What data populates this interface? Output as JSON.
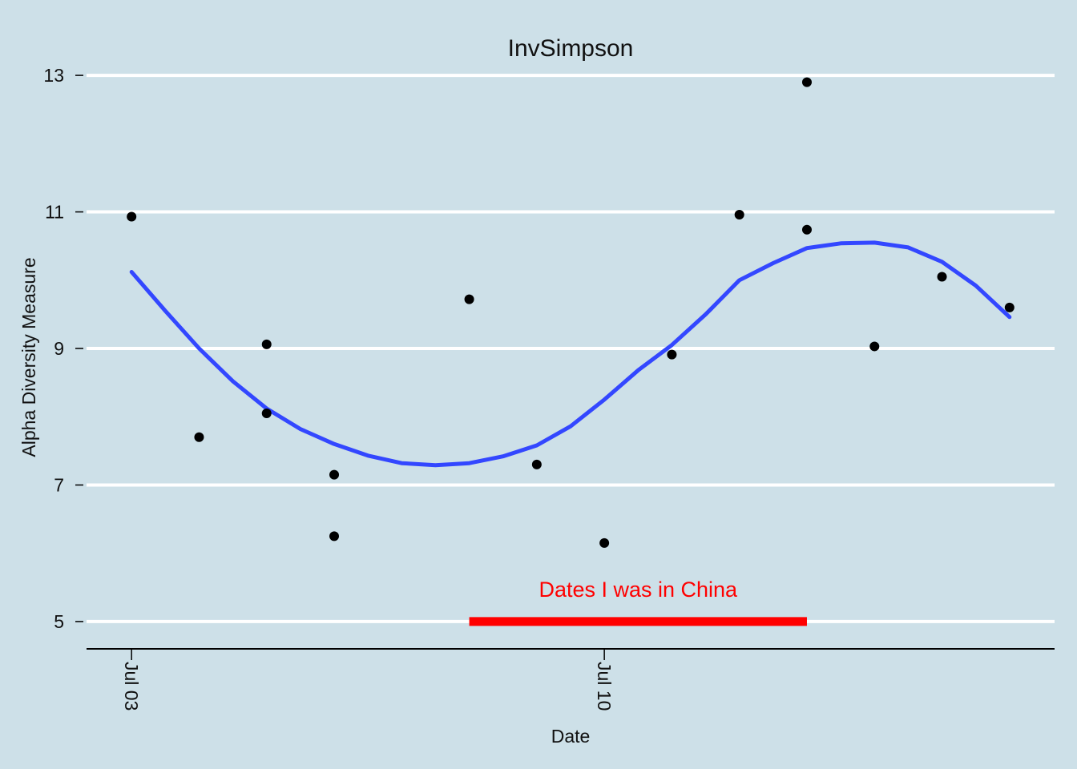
{
  "chart_data": {
    "type": "scatter",
    "title": "InvSimpson",
    "xlabel": "Date",
    "ylabel": "Alpha Diversity Measure",
    "x_axis": {
      "type": "date",
      "range": [
        "2023-07-02T08:00",
        "2023-07-16T16:00"
      ],
      "ticks": [
        {
          "value": "2023-07-03",
          "label": "Jul 03"
        },
        {
          "value": "2023-07-10",
          "label": "Jul 10"
        }
      ]
    },
    "y_axis": {
      "range": [
        4.6,
        13.4
      ],
      "ticks": [
        5,
        7,
        9,
        11,
        13
      ]
    },
    "grid": {
      "horizontal": true,
      "vertical": false
    },
    "legend": "none",
    "points": [
      {
        "x": "2023-07-03",
        "y": 10.93
      },
      {
        "x": "2023-07-04",
        "y": 7.7
      },
      {
        "x": "2023-07-05",
        "y": 9.06
      },
      {
        "x": "2023-07-05",
        "y": 8.05
      },
      {
        "x": "2023-07-06",
        "y": 7.15
      },
      {
        "x": "2023-07-06",
        "y": 6.25
      },
      {
        "x": "2023-07-08",
        "y": 9.72
      },
      {
        "x": "2023-07-09",
        "y": 7.3
      },
      {
        "x": "2023-07-10",
        "y": 6.15
      },
      {
        "x": "2023-07-11",
        "y": 8.91
      },
      {
        "x": "2023-07-12",
        "y": 10.96
      },
      {
        "x": "2023-07-13",
        "y": 12.9
      },
      {
        "x": "2023-07-13",
        "y": 10.74
      },
      {
        "x": "2023-07-14",
        "y": 9.03
      },
      {
        "x": "2023-07-15",
        "y": 10.05
      },
      {
        "x": "2023-07-16",
        "y": 9.6
      }
    ],
    "smooth_line": {
      "color": "#3347ff",
      "points": [
        {
          "x": "2023-07-03T00:00",
          "y": 10.12
        },
        {
          "x": "2023-07-03T12:00",
          "y": 9.55
        },
        {
          "x": "2023-07-04T00:00",
          "y": 9.0
        },
        {
          "x": "2023-07-04T12:00",
          "y": 8.52
        },
        {
          "x": "2023-07-05T00:00",
          "y": 8.12
        },
        {
          "x": "2023-07-05T12:00",
          "y": 7.82
        },
        {
          "x": "2023-07-06T00:00",
          "y": 7.6
        },
        {
          "x": "2023-07-06T12:00",
          "y": 7.43
        },
        {
          "x": "2023-07-07T00:00",
          "y": 7.32
        },
        {
          "x": "2023-07-07T12:00",
          "y": 7.29
        },
        {
          "x": "2023-07-08T00:00",
          "y": 7.32
        },
        {
          "x": "2023-07-08T12:00",
          "y": 7.42
        },
        {
          "x": "2023-07-09T00:00",
          "y": 7.58
        },
        {
          "x": "2023-07-09T12:00",
          "y": 7.86
        },
        {
          "x": "2023-07-10T00:00",
          "y": 8.25
        },
        {
          "x": "2023-07-10T12:00",
          "y": 8.68
        },
        {
          "x": "2023-07-11T00:00",
          "y": 9.05
        },
        {
          "x": "2023-07-11T12:00",
          "y": 9.5
        },
        {
          "x": "2023-07-12T00:00",
          "y": 10.0
        },
        {
          "x": "2023-07-12T12:00",
          "y": 10.25
        },
        {
          "x": "2023-07-13T00:00",
          "y": 10.47
        },
        {
          "x": "2023-07-13T12:00",
          "y": 10.54
        },
        {
          "x": "2023-07-14T00:00",
          "y": 10.55
        },
        {
          "x": "2023-07-14T12:00",
          "y": 10.48
        },
        {
          "x": "2023-07-15T00:00",
          "y": 10.27
        },
        {
          "x": "2023-07-15T12:00",
          "y": 9.92
        },
        {
          "x": "2023-07-16T00:00",
          "y": 9.46
        }
      ]
    },
    "annotation": {
      "text": "Dates I was in China",
      "color": "#ff0000",
      "x_start": "2023-07-08",
      "x_end": "2023-07-13",
      "y": 5
    },
    "colors": {
      "background": "#cde0e8",
      "grid": "#ffffff",
      "points": "#000000"
    }
  }
}
